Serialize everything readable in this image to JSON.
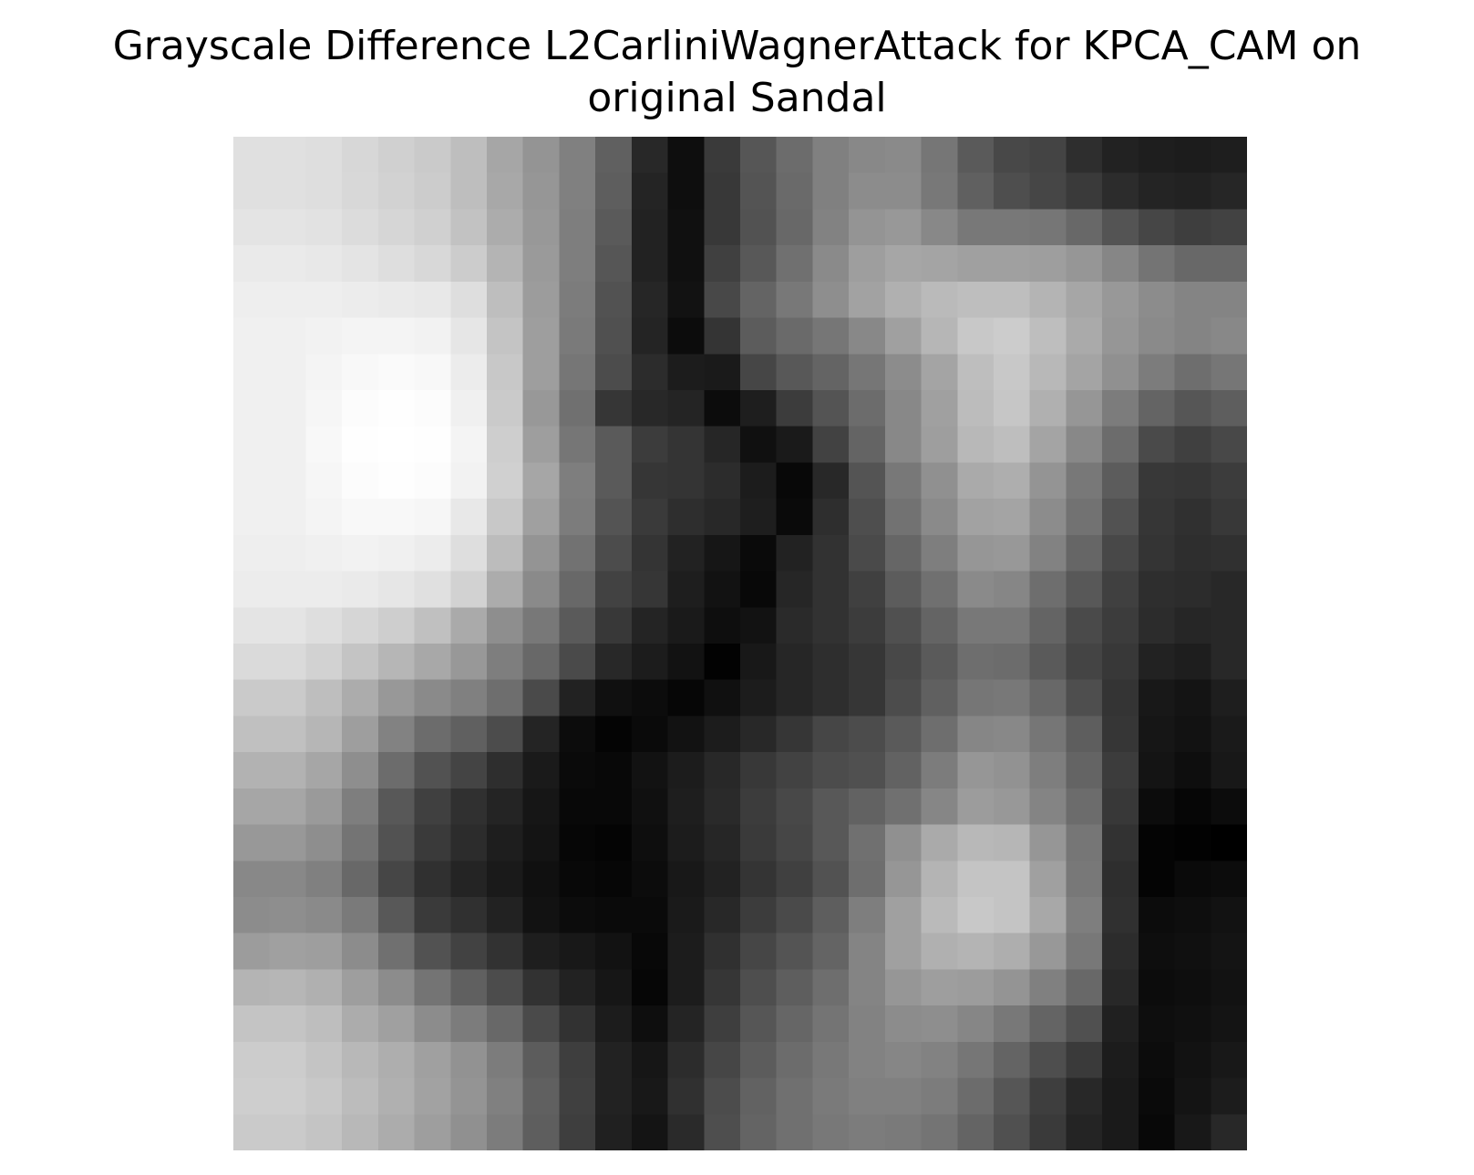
{
  "chart_data": {
    "type": "heatmap",
    "title_lines": [
      "Grayscale Difference L2CarliniWagnerAttack for KPCA_CAM on",
      "original Sandal"
    ],
    "colormap": "gray",
    "axes_visible": false,
    "grid": false,
    "rows": 28,
    "cols": 28,
    "value_range": [
      0,
      255
    ],
    "values": [
      [
        224,
        224,
        222,
        215,
        208,
        202,
        190,
        166,
        148,
        128,
        96,
        40,
        14,
        58,
        86,
        108,
        128,
        136,
        138,
        118,
        90,
        72,
        68,
        46,
        34,
        30,
        28,
        30
      ],
      [
        224,
        224,
        222,
        216,
        210,
        204,
        190,
        168,
        150,
        128,
        94,
        36,
        14,
        56,
        84,
        106,
        128,
        140,
        140,
        120,
        96,
        78,
        70,
        58,
        44,
        36,
        34,
        38
      ],
      [
        228,
        228,
        226,
        220,
        214,
        208,
        194,
        172,
        152,
        126,
        90,
        34,
        16,
        56,
        82,
        104,
        130,
        148,
        152,
        136,
        120,
        120,
        118,
        104,
        84,
        70,
        62,
        66
      ],
      [
        234,
        234,
        232,
        228,
        222,
        216,
        204,
        180,
        154,
        126,
        86,
        34,
        16,
        64,
        88,
        112,
        138,
        158,
        166,
        164,
        160,
        160,
        158,
        150,
        134,
        116,
        104,
        104
      ],
      [
        238,
        238,
        238,
        236,
        234,
        232,
        222,
        190,
        156,
        124,
        82,
        38,
        18,
        72,
        100,
        120,
        142,
        162,
        176,
        186,
        190,
        190,
        180,
        166,
        152,
        140,
        132,
        132
      ],
      [
        240,
        240,
        242,
        244,
        244,
        242,
        230,
        196,
        158,
        122,
        80,
        36,
        12,
        52,
        92,
        106,
        118,
        136,
        160,
        182,
        200,
        204,
        190,
        170,
        150,
        138,
        132,
        136
      ],
      [
        240,
        240,
        244,
        248,
        250,
        248,
        236,
        200,
        158,
        118,
        76,
        44,
        28,
        26,
        70,
        88,
        100,
        118,
        140,
        164,
        190,
        200,
        184,
        164,
        144,
        124,
        110,
        118
      ],
      [
        240,
        240,
        246,
        252,
        254,
        252,
        240,
        202,
        152,
        112,
        54,
        40,
        36,
        12,
        30,
        60,
        84,
        108,
        136,
        160,
        188,
        198,
        176,
        150,
        124,
        100,
        86,
        94
      ],
      [
        240,
        240,
        248,
        254,
        255,
        254,
        244,
        206,
        158,
        118,
        90,
        60,
        52,
        38,
        16,
        26,
        66,
        100,
        136,
        158,
        184,
        190,
        164,
        136,
        108,
        74,
        64,
        72
      ],
      [
        240,
        240,
        246,
        252,
        254,
        252,
        242,
        208,
        166,
        126,
        90,
        54,
        52,
        44,
        28,
        8,
        40,
        84,
        120,
        144,
        170,
        174,
        148,
        120,
        92,
        56,
        54,
        60
      ],
      [
        240,
        240,
        244,
        248,
        248,
        246,
        232,
        200,
        160,
        124,
        84,
        58,
        46,
        40,
        30,
        10,
        46,
        78,
        114,
        138,
        162,
        164,
        140,
        114,
        82,
        54,
        48,
        56
      ],
      [
        238,
        238,
        240,
        242,
        240,
        236,
        222,
        188,
        148,
        114,
        76,
        52,
        34,
        22,
        10,
        34,
        50,
        74,
        102,
        126,
        150,
        152,
        130,
        102,
        72,
        52,
        46,
        48
      ],
      [
        236,
        236,
        236,
        234,
        230,
        224,
        210,
        172,
        138,
        104,
        66,
        54,
        30,
        18,
        8,
        38,
        50,
        64,
        92,
        112,
        138,
        134,
        110,
        88,
        64,
        46,
        44,
        40
      ],
      [
        228,
        228,
        222,
        214,
        206,
        192,
        170,
        142,
        120,
        90,
        56,
        36,
        26,
        14,
        18,
        42,
        50,
        60,
        80,
        100,
        120,
        120,
        100,
        74,
        60,
        44,
        38,
        40
      ],
      [
        218,
        218,
        210,
        196,
        182,
        168,
        152,
        126,
        104,
        74,
        40,
        28,
        18,
        2,
        24,
        38,
        46,
        54,
        72,
        90,
        110,
        108,
        90,
        68,
        56,
        34,
        30,
        40
      ],
      [
        202,
        202,
        190,
        172,
        152,
        138,
        128,
        110,
        74,
        34,
        16,
        12,
        6,
        16,
        28,
        38,
        46,
        54,
        76,
        96,
        118,
        120,
        104,
        78,
        52,
        24,
        20,
        30
      ],
      [
        192,
        192,
        182,
        158,
        130,
        108,
        96,
        76,
        36,
        12,
        4,
        10,
        18,
        28,
        40,
        54,
        70,
        76,
        90,
        110,
        134,
        136,
        118,
        94,
        54,
        22,
        18,
        26
      ],
      [
        178,
        178,
        166,
        142,
        108,
        82,
        68,
        46,
        26,
        10,
        8,
        18,
        28,
        40,
        56,
        66,
        76,
        80,
        98,
        124,
        150,
        146,
        126,
        100,
        60,
        20,
        14,
        24
      ],
      [
        166,
        166,
        154,
        126,
        88,
        64,
        48,
        36,
        22,
        8,
        8,
        16,
        30,
        42,
        60,
        72,
        88,
        98,
        112,
        134,
        156,
        152,
        132,
        108,
        56,
        12,
        6,
        12
      ],
      [
        152,
        152,
        142,
        116,
        82,
        58,
        44,
        30,
        20,
        6,
        4,
        14,
        28,
        38,
        58,
        70,
        88,
        112,
        144,
        170,
        184,
        182,
        150,
        118,
        50,
        4,
        2,
        0
      ],
      [
        136,
        136,
        128,
        104,
        70,
        48,
        36,
        26,
        16,
        8,
        6,
        12,
        24,
        34,
        52,
        64,
        82,
        110,
        150,
        180,
        196,
        196,
        160,
        120,
        46,
        4,
        10,
        12
      ],
      [
        140,
        142,
        138,
        122,
        88,
        58,
        48,
        34,
        18,
        12,
        10,
        10,
        26,
        40,
        60,
        74,
        94,
        126,
        160,
        186,
        200,
        196,
        168,
        126,
        48,
        12,
        14,
        18
      ],
      [
        156,
        160,
        158,
        140,
        112,
        82,
        66,
        50,
        30,
        24,
        18,
        8,
        28,
        48,
        70,
        84,
        100,
        132,
        160,
        176,
        180,
        174,
        152,
        120,
        44,
        14,
        16,
        20
      ],
      [
        180,
        182,
        176,
        158,
        140,
        116,
        96,
        76,
        50,
        34,
        22,
        6,
        28,
        54,
        78,
        94,
        110,
        132,
        150,
        158,
        156,
        148,
        128,
        104,
        40,
        12,
        14,
        18
      ],
      [
        196,
        196,
        190,
        172,
        160,
        140,
        124,
        104,
        74,
        50,
        28,
        14,
        36,
        62,
        86,
        102,
        116,
        130,
        140,
        142,
        134,
        120,
        100,
        80,
        32,
        14,
        16,
        20
      ],
      [
        204,
        204,
        196,
        184,
        174,
        160,
        146,
        124,
        92,
        62,
        34,
        22,
        44,
        70,
        92,
        108,
        120,
        130,
        134,
        130,
        118,
        100,
        78,
        58,
        28,
        12,
        18,
        24
      ],
      [
        206,
        206,
        200,
        188,
        176,
        162,
        148,
        128,
        96,
        64,
        34,
        24,
        48,
        76,
        98,
        112,
        122,
        128,
        128,
        124,
        108,
        86,
        62,
        40,
        26,
        10,
        20,
        28
      ],
      [
        202,
        202,
        196,
        184,
        172,
        158,
        144,
        124,
        94,
        62,
        32,
        20,
        42,
        78,
        100,
        112,
        120,
        124,
        122,
        116,
        100,
        80,
        58,
        36,
        26,
        8,
        24,
        40
      ]
    ]
  }
}
